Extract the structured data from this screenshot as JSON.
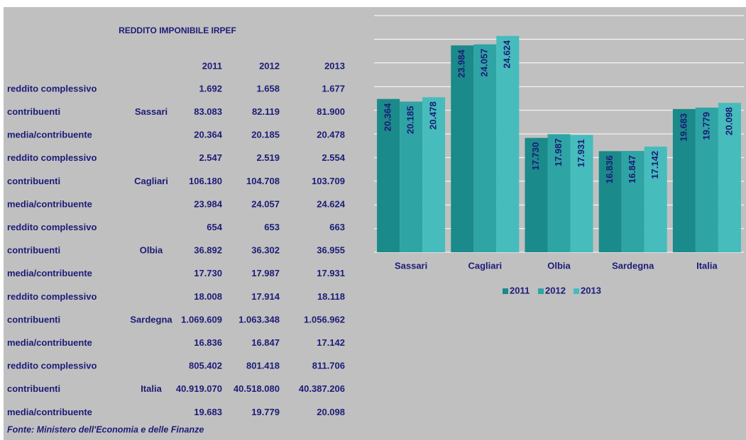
{
  "table": {
    "title": "REDDITO IMPONIBILE IRPEF",
    "columns": [
      "2011",
      "2012",
      "2013"
    ],
    "groups": [
      {
        "region": "Sassari",
        "rows": [
          {
            "label": "reddito complessivo",
            "values": [
              "1.692",
              "1.658",
              "1.677"
            ]
          },
          {
            "label": "contribuenti",
            "values": [
              "83.083",
              "82.119",
              "81.900"
            ]
          },
          {
            "label": "media/contribuente",
            "values": [
              "20.364",
              "20.185",
              "20.478"
            ]
          }
        ]
      },
      {
        "region": "Cagliari",
        "rows": [
          {
            "label": "reddito complessivo",
            "values": [
              "2.547",
              "2.519",
              "2.554"
            ]
          },
          {
            "label": "contribuenti",
            "values": [
              "106.180",
              "104.708",
              "103.709"
            ]
          },
          {
            "label": "media/contribuente",
            "values": [
              "23.984",
              "24.057",
              "24.624"
            ]
          }
        ]
      },
      {
        "region": "Olbia",
        "rows": [
          {
            "label": "reddito complessivo",
            "values": [
              "654",
              "653",
              "663"
            ]
          },
          {
            "label": "contribuenti",
            "values": [
              "36.892",
              "36.302",
              "36.955"
            ]
          },
          {
            "label": "media/contribuente",
            "values": [
              "17.730",
              "17.987",
              "17.931"
            ]
          }
        ]
      },
      {
        "region": "Sardegna",
        "rows": [
          {
            "label": "reddito complessivo",
            "values": [
              "18.008",
              "17.914",
              "18.118"
            ]
          },
          {
            "label": "contribuenti",
            "values": [
              "1.069.609",
              "1.063.348",
              "1.056.962"
            ]
          },
          {
            "label": "media/contribuente",
            "values": [
              "16.836",
              "16.847",
              "17.142"
            ]
          }
        ]
      },
      {
        "region": "Italia",
        "rows": [
          {
            "label": "reddito complessivo",
            "values": [
              "805.402",
              "801.418",
              "811.706"
            ]
          },
          {
            "label": "contribuenti",
            "values": [
              "40.919.070",
              "40.518.080",
              "40.387.206"
            ]
          },
          {
            "label": "media/contribuente",
            "values": [
              "19.683",
              "19.779",
              "20.098"
            ]
          }
        ]
      }
    ],
    "source": "Fonte: Ministero dell'Economia e delle Finanze"
  },
  "chart_data": {
    "type": "bar",
    "categories": [
      "Sassari",
      "Cagliari",
      "Olbia",
      "Sardegna",
      "Italia"
    ],
    "series": [
      {
        "name": "2011",
        "color": "#1a8a8a",
        "values": [
          20.364,
          23.984,
          17.73,
          16.836,
          19.683
        ],
        "value_labels": [
          "20.364",
          "23.984",
          "17.730",
          "16.836",
          "19.683"
        ]
      },
      {
        "name": "2012",
        "color": "#2fa4a4",
        "values": [
          20.185,
          24.057,
          17.987,
          16.847,
          19.779
        ],
        "value_labels": [
          "20.185",
          "24.057",
          "17.987",
          "16.847",
          "19.779"
        ]
      },
      {
        "name": "2013",
        "color": "#46bcbc",
        "values": [
          20.478,
          24.624,
          17.931,
          17.142,
          20.098
        ],
        "value_labels": [
          "20.478",
          "24.624",
          "17.931",
          "17.142",
          "20.098"
        ]
      }
    ],
    "ylim": [
      10,
      26
    ],
    "yticks": [
      10,
      11.6,
      13.2,
      14.8,
      16.4,
      18,
      19.6,
      21.2,
      22.8,
      24.4,
      26
    ],
    "grid": true,
    "legend": "bottom"
  }
}
